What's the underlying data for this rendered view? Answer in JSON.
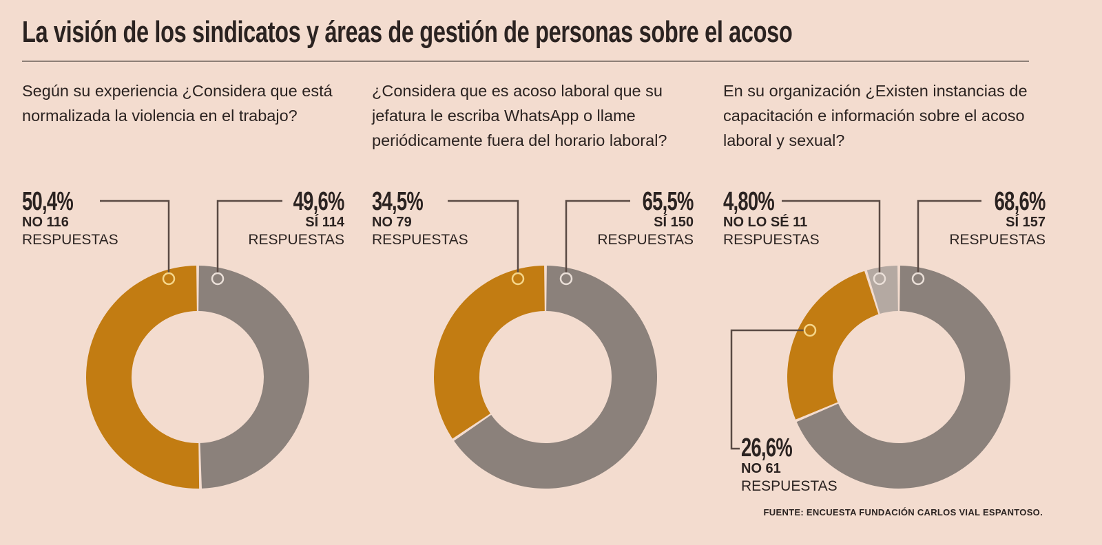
{
  "title": "La visión de los sindicatos y áreas de gestión de personas sobre el acoso",
  "source": "FUENTE: ENCUESTA FUNDACIÓN CARLOS VIAL ESPANTOSO.",
  "colors": {
    "si": "#8b817b",
    "no": "#c27c12",
    "nolose": "#b4a9a2",
    "background": "#f3dccf"
  },
  "chart_data": [
    {
      "type": "pie",
      "title": "Según su experiencia ¿Considera que está normalizada la violencia en el trabajo?",
      "slices": [
        {
          "pct_label": "49,6%",
          "label": "SÍ 114",
          "sub": "RESPUESTAS",
          "value": 49.6,
          "color": "#8b817b"
        },
        {
          "pct_label": "50,4%",
          "label": "NO 116",
          "sub": "RESPUESTAS",
          "value": 50.4,
          "color": "#c27c12"
        }
      ]
    },
    {
      "type": "pie",
      "title": "¿Considera que es acoso laboral que su jefatura le escriba WhatsApp o llame periódicamente fuera del horario laboral?",
      "slices": [
        {
          "pct_label": "65,5%",
          "label": "SÍ 150",
          "sub": "RESPUESTAS",
          "value": 65.5,
          "color": "#8b817b"
        },
        {
          "pct_label": "34,5%",
          "label": "NO 79",
          "sub": "RESPUESTAS",
          "value": 34.5,
          "color": "#c27c12"
        }
      ]
    },
    {
      "type": "pie",
      "title": "En su organización ¿Existen instancias de capacitación e información sobre el acoso laboral y sexual?",
      "slices": [
        {
          "pct_label": "68,6%",
          "label": "SÍ 157",
          "sub": "RESPUESTAS",
          "value": 68.6,
          "color": "#8b817b"
        },
        {
          "pct_label": "26,6%",
          "label": "NO 61",
          "sub": "RESPUESTAS",
          "value": 26.6,
          "color": "#c27c12"
        },
        {
          "pct_label": "4,80%",
          "label": "NO LO SÉ 11",
          "sub": "RESPUESTAS",
          "value": 4.8,
          "color": "#b4a9a2"
        }
      ]
    }
  ]
}
